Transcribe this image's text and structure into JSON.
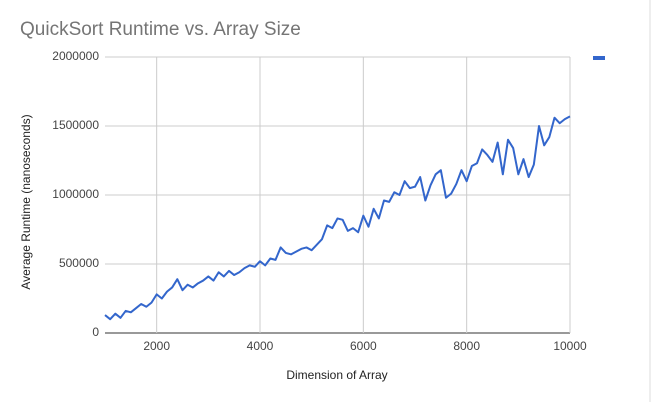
{
  "chart_data": {
    "type": "line",
    "title": "QuickSort Runtime vs. Array Size",
    "x_label": "Dimension of Array",
    "y_label": "Average Runtime (nanoseconds)",
    "x": [
      1000,
      1100,
      1200,
      1300,
      1400,
      1500,
      1600,
      1700,
      1800,
      1900,
      2000,
      2100,
      2200,
      2300,
      2400,
      2500,
      2600,
      2700,
      2800,
      2900,
      3000,
      3100,
      3200,
      3300,
      3400,
      3500,
      3600,
      3700,
      3800,
      3900,
      4000,
      4100,
      4200,
      4300,
      4400,
      4500,
      4600,
      4700,
      4800,
      4900,
      5000,
      5100,
      5200,
      5300,
      5400,
      5500,
      5600,
      5700,
      5800,
      5900,
      6000,
      6100,
      6200,
      6300,
      6400,
      6500,
      6600,
      6700,
      6800,
      6900,
      7000,
      7100,
      7200,
      7300,
      7400,
      7500,
      7600,
      7700,
      7800,
      7900,
      8000,
      8100,
      8200,
      8300,
      8400,
      8500,
      8600,
      8700,
      8800,
      8900,
      9000,
      9100,
      9200,
      9300,
      9400,
      9500,
      9600,
      9700,
      9800,
      9900,
      10000
    ],
    "series": [
      {
        "color": "#3366cc",
        "values": [
          130000,
          100000,
          140000,
          110000,
          160000,
          150000,
          180000,
          210000,
          190000,
          220000,
          280000,
          250000,
          300000,
          330000,
          390000,
          310000,
          350000,
          330000,
          360000,
          380000,
          410000,
          380000,
          440000,
          410000,
          450000,
          420000,
          440000,
          470000,
          490000,
          480000,
          520000,
          490000,
          540000,
          530000,
          620000,
          580000,
          570000,
          590000,
          610000,
          620000,
          600000,
          640000,
          680000,
          780000,
          760000,
          830000,
          820000,
          740000,
          760000,
          730000,
          850000,
          770000,
          900000,
          830000,
          960000,
          950000,
          1020000,
          1000000,
          1100000,
          1050000,
          1060000,
          1130000,
          960000,
          1070000,
          1150000,
          1180000,
          980000,
          1010000,
          1080000,
          1180000,
          1100000,
          1210000,
          1230000,
          1330000,
          1290000,
          1240000,
          1380000,
          1150000,
          1400000,
          1340000,
          1150000,
          1260000,
          1130000,
          1220000,
          1500000,
          1360000,
          1420000,
          1560000,
          1520000,
          1550000,
          1570000
        ]
      }
    ],
    "xlim": [
      1000,
      10000
    ],
    "xticks": [
      2000,
      4000,
      6000,
      8000,
      10000
    ],
    "ylim": [
      0,
      2000000
    ],
    "yticks": [
      0,
      500000,
      1000000,
      1500000,
      2000000
    ],
    "grid": true,
    "legend": "top-right"
  }
}
